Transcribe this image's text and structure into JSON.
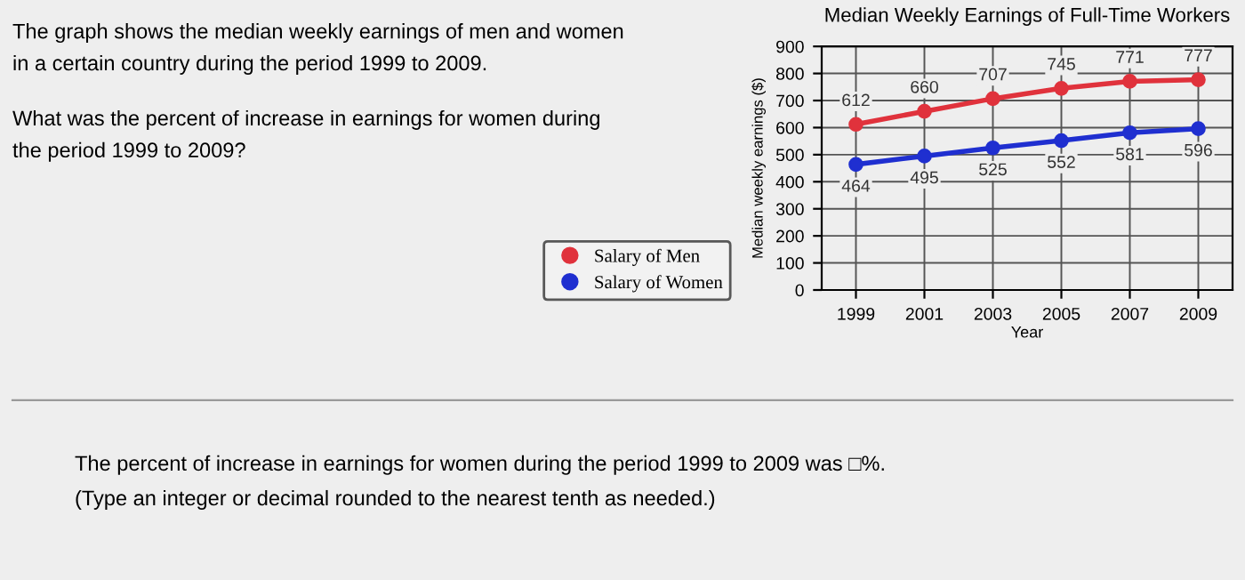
{
  "chart_data": {
    "type": "line",
    "title": "Median Weekly Earnings of Full-Time Workers",
    "xlabel": "Year",
    "ylabel": "Median weekly earnings ($)",
    "x": [
      1999,
      2001,
      2003,
      2005,
      2007,
      2009
    ],
    "series": [
      {
        "name": "Salary of Men",
        "color": "#e0323c",
        "values": [
          612,
          660,
          707,
          745,
          771,
          777
        ]
      },
      {
        "name": "Salary of Women",
        "color": "#1f2fd0",
        "values": [
          464,
          495,
          525,
          552,
          581,
          596
        ]
      }
    ],
    "xlim": [
      1998,
      2010
    ],
    "xticks": [
      1999,
      2001,
      2003,
      2005,
      2007,
      2009
    ],
    "ylim": [
      0,
      900
    ],
    "yticks": [
      0,
      100,
      200,
      300,
      400,
      500,
      600,
      700,
      800,
      900
    ],
    "grid": true,
    "legend": "left",
    "marker": "circle",
    "line_style": "solid",
    "data_labels": true,
    "annotations": [
      "The graph shows the median weekly earnings of men and women",
      "in a certain country during the period 1999 to 2009.",
      "What was the percent of increase in earnings for women during",
      "the period 1999 to 2009?",
      "The percent of increase in earnings for women during the period 1999 to 2009 was □%.",
      "(Type an integer or decimal rounded to the nearest tenth as needed.)"
    ]
  }
}
